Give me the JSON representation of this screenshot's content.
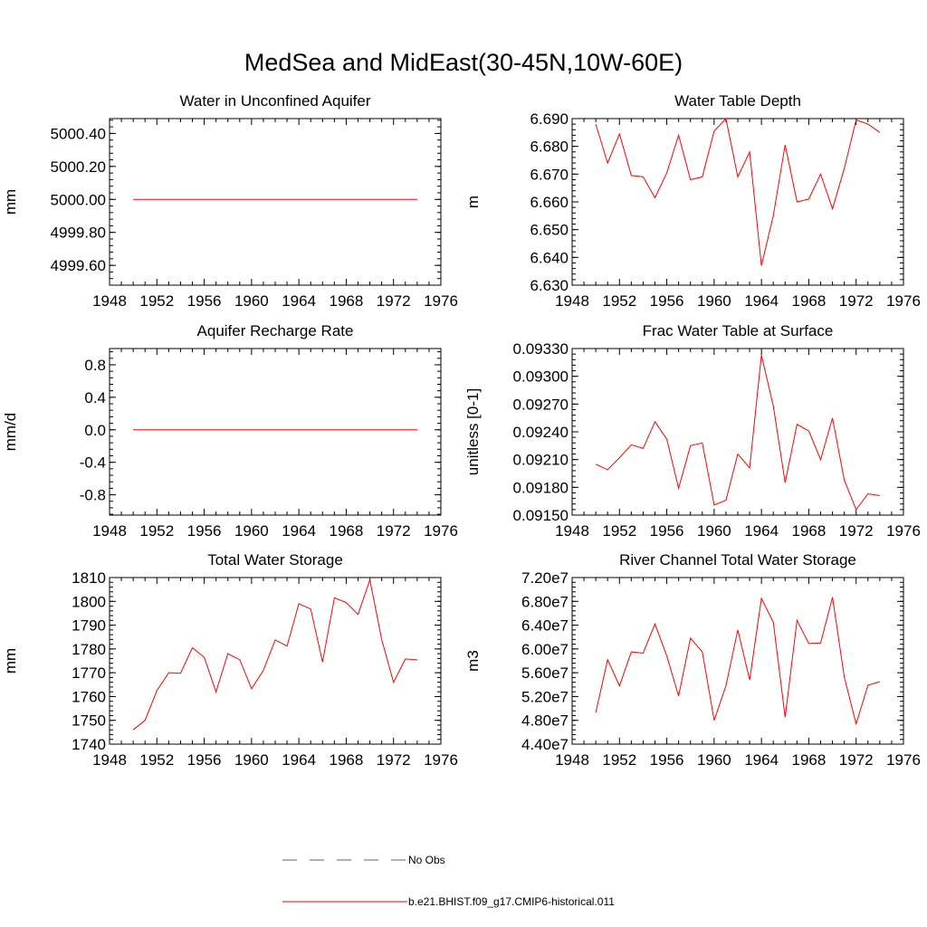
{
  "title": "MedSea and MidEast(30-45N,10W-60E)",
  "series_color": "#ff0000",
  "obs_color": "#5a5ab4",
  "legend": {
    "obs_label": "No Obs",
    "model_label": "b.e21.BHIST.f09_g17.CMIP6-historical.011"
  },
  "chart_data": [
    {
      "type": "line",
      "title": "Water in Unconfined Aquifer",
      "ylabel": "mm",
      "xlim": [
        1948,
        1976
      ],
      "ylim": [
        4999.48,
        5000.49
      ],
      "xticks": [
        1948,
        1952,
        1956,
        1960,
        1964,
        1968,
        1972,
        1976
      ],
      "yticks": [
        4999.6,
        4999.8,
        5000.0,
        5000.2,
        5000.4
      ],
      "ytick_labels": [
        "4999.60",
        "4999.80",
        "5000.00",
        "5000.20",
        "5000.40"
      ],
      "x": [
        1950,
        1951,
        1952,
        1953,
        1954,
        1955,
        1956,
        1957,
        1958,
        1959,
        1960,
        1961,
        1962,
        1963,
        1964,
        1965,
        1966,
        1967,
        1968,
        1969,
        1970,
        1971,
        1972,
        1973,
        1974
      ],
      "values": [
        5000.0,
        5000.0,
        5000.0,
        5000.0,
        5000.0,
        5000.0,
        5000.0,
        5000.0,
        5000.0,
        5000.0,
        5000.0,
        5000.0,
        5000.0,
        5000.0,
        5000.0,
        5000.0,
        5000.0,
        5000.0,
        5000.0,
        5000.0,
        5000.0,
        5000.0,
        5000.0,
        5000.0,
        5000.0
      ]
    },
    {
      "type": "line",
      "title": "Water Table Depth",
      "ylabel": "m",
      "xlim": [
        1948,
        1976
      ],
      "ylim": [
        6.63,
        6.69
      ],
      "xticks": [
        1948,
        1952,
        1956,
        1960,
        1964,
        1968,
        1972,
        1976
      ],
      "yticks": [
        6.63,
        6.64,
        6.65,
        6.66,
        6.67,
        6.68,
        6.69
      ],
      "ytick_labels": [
        "6.630",
        "6.640",
        "6.650",
        "6.660",
        "6.670",
        "6.680",
        "6.690"
      ],
      "x": [
        1950,
        1951,
        1952,
        1953,
        1954,
        1955,
        1956,
        1957,
        1958,
        1959,
        1960,
        1961,
        1962,
        1963,
        1964,
        1965,
        1966,
        1967,
        1968,
        1969,
        1970,
        1971,
        1972,
        1973,
        1974
      ],
      "values": [
        6.688,
        6.674,
        6.6845,
        6.6695,
        6.669,
        6.6615,
        6.6705,
        6.684,
        6.668,
        6.669,
        6.6855,
        6.69,
        6.669,
        6.678,
        6.637,
        6.655,
        6.6805,
        6.66,
        6.661,
        6.67,
        6.6575,
        6.672,
        6.6895,
        6.688,
        6.685
      ]
    },
    {
      "type": "line",
      "title": "Aquifer Recharge Rate",
      "ylabel": "mm/d",
      "xlim": [
        1948,
        1976
      ],
      "ylim": [
        -1.05,
        1.0
      ],
      "xticks": [
        1948,
        1952,
        1956,
        1960,
        1964,
        1968,
        1972,
        1976
      ],
      "yticks": [
        -0.8,
        -0.4,
        0.0,
        0.4,
        0.8
      ],
      "ytick_labels": [
        "-0.8",
        "-0.4",
        "0.0",
        "0.4",
        "0.8"
      ],
      "x": [
        1950,
        1951,
        1952,
        1953,
        1954,
        1955,
        1956,
        1957,
        1958,
        1959,
        1960,
        1961,
        1962,
        1963,
        1964,
        1965,
        1966,
        1967,
        1968,
        1969,
        1970,
        1971,
        1972,
        1973,
        1974
      ],
      "values": [
        0,
        0,
        0,
        0,
        0,
        0,
        0,
        0,
        0,
        0,
        0,
        0,
        0,
        0,
        0,
        0,
        0,
        0,
        0,
        0,
        0,
        0,
        0,
        0,
        0
      ]
    },
    {
      "type": "line",
      "title": "Frac Water Table at Surface",
      "ylabel": "unitless [0-1]",
      "xlim": [
        1948,
        1976
      ],
      "ylim": [
        0.0915,
        0.0933
      ],
      "xticks": [
        1948,
        1952,
        1956,
        1960,
        1964,
        1968,
        1972,
        1976
      ],
      "yticks": [
        0.0915,
        0.0918,
        0.0921,
        0.0924,
        0.0927,
        0.093,
        0.0933
      ],
      "ytick_labels": [
        "0.09150",
        "0.09180",
        "0.09210",
        "0.09240",
        "0.09270",
        "0.09300",
        "0.09330"
      ],
      "x": [
        1950,
        1951,
        1952,
        1953,
        1954,
        1955,
        1956,
        1957,
        1958,
        1959,
        1960,
        1961,
        1962,
        1963,
        1964,
        1965,
        1966,
        1967,
        1968,
        1969,
        1970,
        1971,
        1972,
        1973,
        1974
      ],
      "values": [
        0.09205,
        0.09199,
        0.09212,
        0.09226,
        0.09222,
        0.09251,
        0.09232,
        0.09179,
        0.09225,
        0.09228,
        0.09161,
        0.09166,
        0.09216,
        0.09201,
        0.09323,
        0.09268,
        0.09185,
        0.09248,
        0.09241,
        0.0921,
        0.09255,
        0.09188,
        0.09156,
        0.09173,
        0.09171
      ]
    },
    {
      "type": "line",
      "title": "Total Water Storage",
      "ylabel": "mm",
      "xlim": [
        1948,
        1976
      ],
      "ylim": [
        1740,
        1810
      ],
      "xticks": [
        1948,
        1952,
        1956,
        1960,
        1964,
        1968,
        1972,
        1976
      ],
      "yticks": [
        1740,
        1750,
        1760,
        1770,
        1780,
        1790,
        1800,
        1810
      ],
      "ytick_labels": [
        "1740",
        "1750",
        "1760",
        "1770",
        "1780",
        "1790",
        "1800",
        "1810"
      ],
      "x": [
        1950,
        1951,
        1952,
        1953,
        1954,
        1955,
        1956,
        1957,
        1958,
        1959,
        1960,
        1961,
        1962,
        1963,
        1964,
        1965,
        1966,
        1967,
        1968,
        1969,
        1970,
        1971,
        1972,
        1973,
        1974
      ],
      "values": [
        1746,
        1750,
        1762.5,
        1770,
        1769.8,
        1780.5,
        1776.5,
        1762,
        1778,
        1775.5,
        1763.3,
        1771,
        1783.8,
        1781.2,
        1799,
        1796.8,
        1774.5,
        1801.5,
        1799.5,
        1794.5,
        1809,
        1784,
        1766,
        1775.8,
        1775.4
      ]
    },
    {
      "type": "line",
      "title": "River Channel Total Water Storage",
      "ylabel": "m3",
      "xlim": [
        1948,
        1976
      ],
      "ylim": [
        44000000.0,
        72000000.0
      ],
      "xticks": [
        1948,
        1952,
        1956,
        1960,
        1964,
        1968,
        1972,
        1976
      ],
      "yticks": [
        44000000.0,
        48000000.0,
        52000000.0,
        56000000.0,
        60000000.0,
        64000000.0,
        68000000.0,
        72000000.0
      ],
      "ytick_labels": [
        "4.40e7",
        "4.80e7",
        "5.20e7",
        "5.60e7",
        "6.00e7",
        "6.40e7",
        "6.80e7",
        "7.20e7"
      ],
      "x": [
        1950,
        1951,
        1952,
        1953,
        1954,
        1955,
        1956,
        1957,
        1958,
        1959,
        1960,
        1961,
        1962,
        1963,
        1964,
        1965,
        1966,
        1967,
        1968,
        1969,
        1970,
        1971,
        1972,
        1973,
        1974
      ],
      "values": [
        49300000.0,
        58200000.0,
        53800000.0,
        59500000.0,
        59300000.0,
        64200000.0,
        58800000.0,
        52100000.0,
        61800000.0,
        59500000.0,
        48000000.0,
        53800000.0,
        63200000.0,
        54800000.0,
        68500000.0,
        64500000.0,
        48500000.0,
        64800000.0,
        60900000.0,
        61000000.0,
        68700000.0,
        55300000.0,
        47400000.0,
        53900000.0,
        54500000.0
      ]
    }
  ]
}
